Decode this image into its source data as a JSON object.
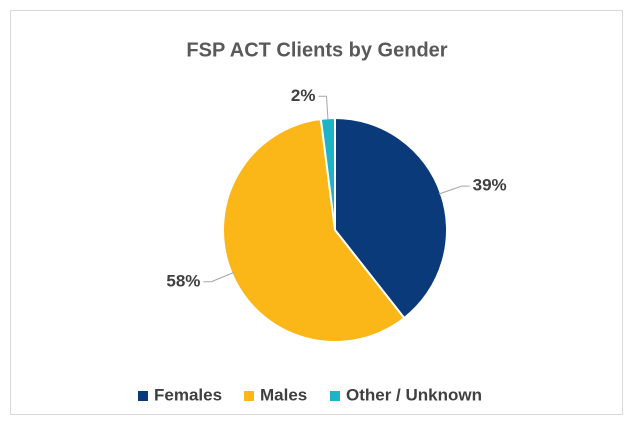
{
  "chart_data": {
    "type": "pie",
    "title": "FSP ACT Clients by Gender",
    "categories": [
      "Females",
      "Males",
      "Other / Unknown"
    ],
    "values": [
      39,
      58,
      2
    ],
    "value_labels": [
      "39%",
      "58%",
      "2%"
    ],
    "colors": [
      "#0b3a7a",
      "#fbb617",
      "#1fb3c8"
    ],
    "legend": "bottom"
  }
}
